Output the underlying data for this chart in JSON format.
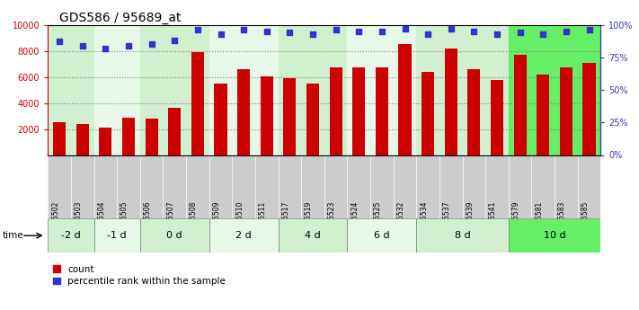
{
  "title": "GDS586 / 95689_at",
  "samples": [
    "GSM15502",
    "GSM15503",
    "GSM15504",
    "GSM15505",
    "GSM15506",
    "GSM15507",
    "GSM15508",
    "GSM15509",
    "GSM15510",
    "GSM15511",
    "GSM15517",
    "GSM15519",
    "GSM15523",
    "GSM15524",
    "GSM15525",
    "GSM15532",
    "GSM15534",
    "GSM15537",
    "GSM15539",
    "GSM15541",
    "GSM15579",
    "GSM15581",
    "GSM15583",
    "GSM15585"
  ],
  "counts": [
    2550,
    2350,
    2100,
    2850,
    2800,
    3600,
    7900,
    5500,
    6600,
    6050,
    5900,
    5500,
    6700,
    6700,
    6700,
    8500,
    6350,
    8200,
    6600,
    5750,
    7700,
    6200,
    6750,
    7100
  ],
  "percentile": [
    87,
    84,
    82,
    84,
    85,
    88,
    96,
    93,
    96,
    95,
    94,
    93,
    96,
    95,
    95,
    97,
    93,
    97,
    95,
    93,
    94,
    93,
    95,
    96
  ],
  "groups": [
    {
      "label": "-2 d",
      "start": 0,
      "end": 2,
      "color": "#d0f0d0"
    },
    {
      "label": "-1 d",
      "start": 2,
      "end": 4,
      "color": "#e8f8e8"
    },
    {
      "label": "0 d",
      "start": 4,
      "end": 7,
      "color": "#d0f0d0"
    },
    {
      "label": "2 d",
      "start": 7,
      "end": 10,
      "color": "#e8f8e8"
    },
    {
      "label": "4 d",
      "start": 10,
      "end": 13,
      "color": "#d0f0d0"
    },
    {
      "label": "6 d",
      "start": 13,
      "end": 16,
      "color": "#e8f8e8"
    },
    {
      "label": "8 d",
      "start": 16,
      "end": 20,
      "color": "#d0f0d0"
    },
    {
      "label": "10 d",
      "start": 20,
      "end": 24,
      "color": "#66ee66"
    }
  ],
  "sample_bg_color": "#cccccc",
  "bar_color": "#cc0000",
  "dot_color": "#3333cc",
  "ylim_left": [
    0,
    10000
  ],
  "ylim_right": [
    0,
    100
  ],
  "yticks_left": [
    2000,
    4000,
    6000,
    8000,
    10000
  ],
  "yticks_right": [
    0,
    25,
    50,
    75,
    100
  ],
  "left_tick_color": "#cc0000",
  "right_tick_color": "#3333cc",
  "title_fontsize": 10,
  "tick_fontsize": 7,
  "sample_fontsize": 5.5
}
